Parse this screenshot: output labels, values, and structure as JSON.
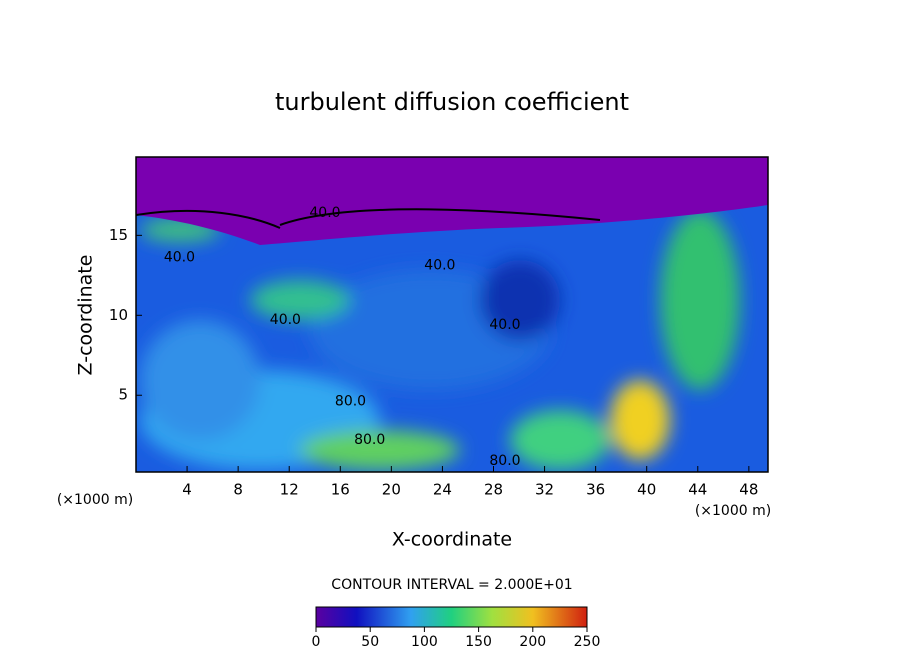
{
  "chart_data": {
    "type": "contour",
    "title": "turbulent diffusion coefficient",
    "x_label": "X-coordinate",
    "y_label": "Z-coordinate",
    "x_unit": "(×1000 m)",
    "y_unit": "(×1000 m)",
    "xlim": [
      0,
      49.5
    ],
    "ylim": [
      0.2,
      19.9
    ],
    "xticks": [
      4,
      8,
      12,
      16,
      20,
      24,
      28,
      32,
      36,
      40,
      44,
      48
    ],
    "yticks": [
      5,
      10,
      15
    ],
    "contour_interval": "CONTOUR INTERVAL = 2.000E+01",
    "colorbar": {
      "lim": [
        0,
        250
      ],
      "ticks": [
        0,
        50,
        100,
        150,
        200,
        250
      ]
    },
    "contour_labels": [
      {
        "value": 40,
        "label": "40.0",
        "x": 14.8,
        "y": 16.4
      },
      {
        "value": 40,
        "label": "40.0",
        "x": 3.4,
        "y": 13.6
      },
      {
        "value": 40,
        "label": "40.0",
        "x": 23.8,
        "y": 13.1
      },
      {
        "value": 40,
        "label": "40.0",
        "x": 28.9,
        "y": 9.4
      },
      {
        "value": 40,
        "label": "40.0",
        "x": 11.7,
        "y": 9.7
      },
      {
        "value": 80,
        "label": "80.0",
        "x": 16.8,
        "y": 4.6
      },
      {
        "value": 80,
        "label": "80.0",
        "x": 18.3,
        "y": 2.2
      },
      {
        "value": 80,
        "label": "80.0",
        "x": 28.9,
        "y": 0.9
      }
    ]
  }
}
